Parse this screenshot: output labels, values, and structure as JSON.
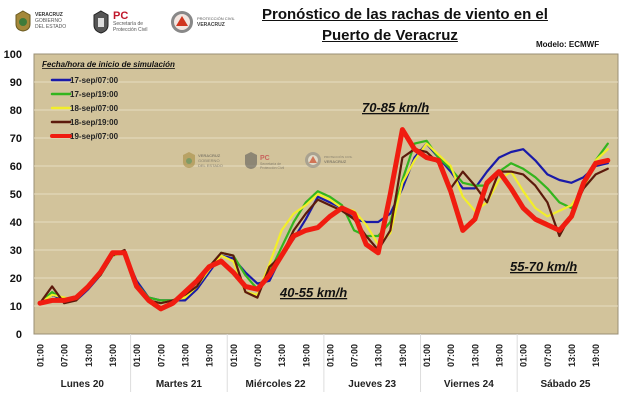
{
  "header": {
    "logos": [
      {
        "name": "veracruz-gobierno-logo",
        "lines": [
          "VERACRUZ",
          "GOBIERNO",
          "DEL ESTADO"
        ]
      },
      {
        "name": "pc-proteccion-civil-logo",
        "lines": [
          "PC",
          "Secretaría de",
          "Protección Civil"
        ]
      },
      {
        "name": "proteccion-civil-veracruz-logo",
        "lines": [
          "PROTECCIÓN CIVIL",
          "VERACRUZ"
        ]
      }
    ],
    "title_line1": "Pronóstico de las rachas de viento en el",
    "title_line2": "Puerto de Veracruz",
    "model": "Modelo: ECMWF"
  },
  "chart_data": {
    "type": "line",
    "title": "Pronóstico de las rachas de viento en el Puerto de Veracruz",
    "subtitle": "Modelo: ECMWF",
    "xlabel": "",
    "ylabel": "",
    "ylim": [
      0,
      100
    ],
    "yticks": [
      0,
      10,
      20,
      30,
      40,
      50,
      60,
      70,
      80,
      90,
      100
    ],
    "grid": true,
    "x_step_hours": 3,
    "x_tick_labels": [
      "01:00",
      "07:00",
      "13:00",
      "19:00"
    ],
    "days": [
      "Lunes 20",
      "Martes 21",
      "Miércoles 22",
      "Jueves 23",
      "Viernes 24",
      "Sábado 25"
    ],
    "legend_title": "Fecha/hora de inicio de simulación",
    "legend_position": "top-left",
    "series": [
      {
        "name": "17-sep/07:00",
        "color": "#1a1aa8",
        "values": [
          11,
          14,
          12,
          12,
          16,
          21,
          28,
          29,
          19,
          13,
          12,
          12,
          12,
          16,
          22,
          28,
          27,
          22,
          18,
          19,
          28,
          34,
          41,
          49,
          47,
          45,
          41,
          40,
          40,
          43,
          52,
          63,
          68,
          63,
          58,
          52,
          52,
          58,
          63,
          65,
          66,
          62,
          57,
          55,
          54,
          56,
          60,
          61
        ]
      },
      {
        "name": "17-sep/19:00",
        "color": "#33b51e",
        "values": [
          11,
          15,
          12,
          13,
          17,
          21,
          28,
          29,
          18,
          13,
          12,
          12,
          13,
          17,
          23,
          29,
          28,
          21,
          16,
          22,
          31,
          40,
          47,
          51,
          49,
          46,
          37,
          35,
          35,
          40,
          55,
          68,
          69,
          63,
          59,
          54,
          53,
          53,
          58,
          61,
          59,
          56,
          52,
          47,
          45,
          52,
          62,
          68
        ]
      },
      {
        "name": "18-sep/07:00",
        "color": "#f2ee2a",
        "values": [
          11,
          14,
          13,
          12,
          17,
          22,
          28,
          29,
          18,
          12,
          11,
          12,
          13,
          17,
          23,
          28,
          26,
          15,
          14,
          25,
          37,
          43,
          46,
          50,
          48,
          45,
          44,
          39,
          32,
          36,
          54,
          62,
          68,
          64,
          60,
          49,
          44,
          47,
          55,
          58,
          51,
          45,
          42,
          44,
          46,
          52,
          62,
          66
        ]
      },
      {
        "name": "18-sep/19:00",
        "color": "#5c1a0c",
        "values": [
          11,
          17,
          11,
          12,
          17,
          21,
          28,
          30,
          18,
          12,
          11,
          12,
          14,
          17,
          24,
          29,
          28,
          15,
          13,
          24,
          28,
          37,
          43,
          48,
          46,
          44,
          41,
          35,
          30,
          37,
          63,
          66,
          65,
          61,
          52,
          58,
          53,
          47,
          58,
          58,
          57,
          53,
          47,
          35,
          43,
          52,
          57,
          59
        ]
      },
      {
        "name": "19-sep/07:00",
        "color": "#f01c10",
        "values": [
          11,
          12,
          12,
          13,
          17,
          22,
          29,
          29,
          17,
          12,
          9,
          11,
          15,
          19,
          24,
          26,
          22,
          17,
          16,
          21,
          28,
          35,
          37,
          38,
          42,
          45,
          43,
          32,
          29,
          50,
          73,
          66,
          63,
          62,
          51,
          37,
          41,
          54,
          58,
          52,
          45,
          41,
          39,
          37,
          42,
          54,
          61,
          62
        ]
      }
    ],
    "annotations": [
      "70-85 km/h",
      "40-55 km/h",
      "55-70 km/h"
    ]
  },
  "colors": {
    "plot_bg": "#d2c39b",
    "grid": "#e6dcc0"
  }
}
